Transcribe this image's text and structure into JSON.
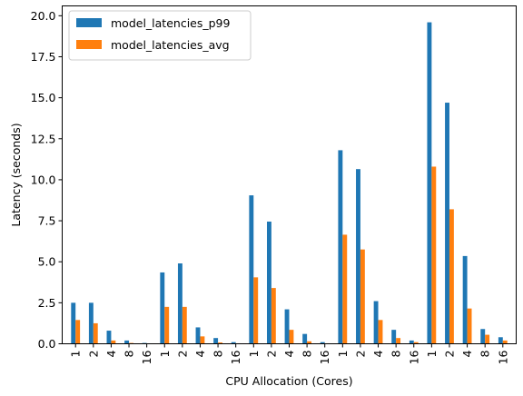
{
  "chart_data": {
    "type": "bar",
    "title": "",
    "xlabel": "CPU Allocation (Cores)",
    "ylabel": "Latency (seconds)",
    "ylim": [
      0,
      20.6
    ],
    "yticks": [
      "0.0",
      "2.5",
      "5.0",
      "7.5",
      "10.0",
      "12.5",
      "15.0",
      "17.5",
      "20.0"
    ],
    "categories": [
      "1",
      "2",
      "4",
      "8",
      "16",
      "1",
      "2",
      "4",
      "8",
      "16",
      "1",
      "2",
      "4",
      "8",
      "16",
      "1",
      "2",
      "4",
      "8",
      "16",
      "1",
      "2",
      "4",
      "8",
      "16"
    ],
    "series": [
      {
        "name": "model_latencies_p99",
        "color": "#1f77b4",
        "values": [
          2.5,
          2.5,
          0.8,
          0.2,
          0.05,
          4.35,
          4.9,
          1.0,
          0.35,
          0.1,
          9.05,
          7.45,
          2.1,
          0.6,
          0.1,
          11.8,
          10.65,
          2.6,
          0.85,
          0.2,
          19.6,
          14.7,
          5.35,
          0.9,
          0.4
        ]
      },
      {
        "name": "model_latencies_avg",
        "color": "#ff7f0e",
        "values": [
          1.45,
          1.25,
          0.2,
          0.05,
          0.02,
          2.25,
          2.25,
          0.45,
          0.08,
          0.03,
          4.05,
          3.4,
          0.85,
          0.15,
          0.03,
          6.65,
          5.75,
          1.45,
          0.35,
          0.1,
          10.8,
          8.2,
          2.15,
          0.55,
          0.2
        ]
      }
    ],
    "grid": false,
    "legend_position": "top-left"
  }
}
